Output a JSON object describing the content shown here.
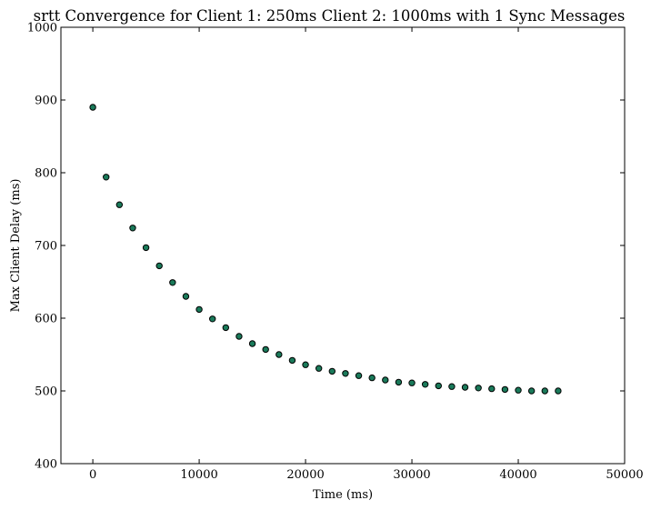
{
  "chart_data": {
    "type": "scatter",
    "title": "srtt Convergence for Client 1: 250ms Client 2: 1000ms with 1 Sync Messages",
    "xlabel": "Time (ms)",
    "ylabel": "Max Client Delay (ms)",
    "xlim": [
      -3000,
      50000
    ],
    "ylim": [
      400,
      1000
    ],
    "x_ticks": [
      0,
      10000,
      20000,
      30000,
      40000,
      50000
    ],
    "y_ticks": [
      400,
      500,
      600,
      700,
      800,
      900,
      1000
    ],
    "grid": false,
    "legend": "none",
    "marker_color": "#1a7a5a",
    "marker_edge": "#000000",
    "series": [
      {
        "x": [
          0,
          1250,
          2500,
          3750,
          5000,
          6250,
          7500,
          8750,
          10000,
          11250,
          12500,
          13750,
          15000,
          16250,
          17500,
          18750,
          20000,
          21250,
          22500,
          23750,
          25000,
          26250,
          27500,
          28750,
          30000,
          31250,
          32500,
          33750,
          35000,
          36250,
          37500,
          38750,
          40000,
          41250,
          42500,
          43750
        ],
        "y": [
          890,
          794,
          756,
          724,
          697,
          672,
          649,
          630,
          612,
          599,
          587,
          575,
          565,
          557,
          550,
          542,
          536,
          531,
          527,
          524,
          521,
          518,
          515,
          512,
          511,
          509,
          507,
          506,
          505,
          504,
          503,
          502,
          501,
          500,
          500,
          500
        ]
      }
    ]
  }
}
